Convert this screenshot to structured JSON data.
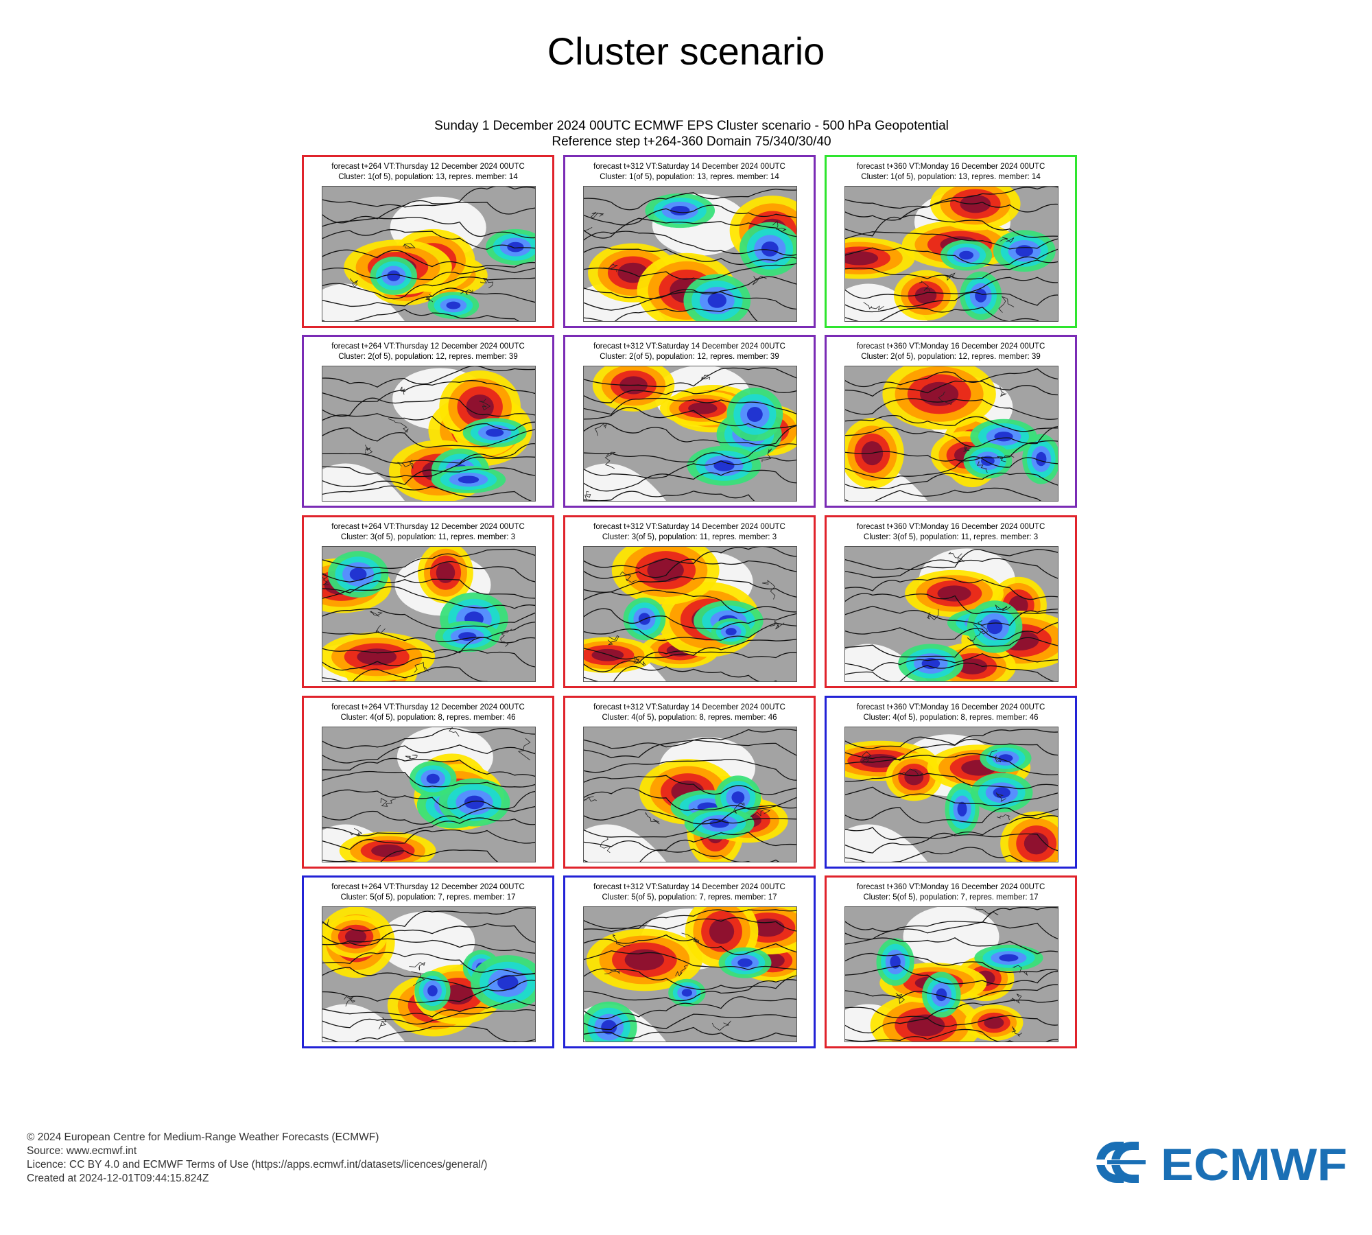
{
  "page": {
    "title": "Cluster scenario",
    "suptitle_line1": "Sunday 1 December 2024 00UTC ECMWF EPS Cluster scenario - 500 hPa Geopotential",
    "suptitle_line2": "Reference step t+264-360 Domain 75/340/30/40"
  },
  "colors": {
    "red": "#e0232b",
    "purple": "#7a2bb5",
    "green": "#2ee52e",
    "blue": "#2222d6"
  },
  "panels": [
    {
      "step": "forecast t+264 VT:Thursday 12 December 2024 00UTC",
      "cluster": "Cluster: 1(of 5), population: 13, repres. member: 14",
      "frame": "red"
    },
    {
      "step": "forecast t+312 VT:Saturday 14 December 2024 00UTC",
      "cluster": "Cluster: 1(of 5), population: 13, repres. member: 14",
      "frame": "purple"
    },
    {
      "step": "forecast t+360 VT:Monday 16 December 2024 00UTC",
      "cluster": "Cluster: 1(of 5), population: 13, repres. member: 14",
      "frame": "green"
    },
    {
      "step": "forecast t+264 VT:Thursday 12 December 2024 00UTC",
      "cluster": "Cluster: 2(of 5), population: 12, repres. member: 39",
      "frame": "purple"
    },
    {
      "step": "forecast t+312 VT:Saturday 14 December 2024 00UTC",
      "cluster": "Cluster: 2(of 5), population: 12, repres. member: 39",
      "frame": "purple"
    },
    {
      "step": "forecast t+360 VT:Monday 16 December 2024 00UTC",
      "cluster": "Cluster: 2(of 5), population: 12, repres. member: 39",
      "frame": "purple"
    },
    {
      "step": "forecast t+264 VT:Thursday 12 December 2024 00UTC",
      "cluster": "Cluster: 3(of 5), population: 11, repres. member: 3",
      "frame": "red"
    },
    {
      "step": "forecast t+312 VT:Saturday 14 December 2024 00UTC",
      "cluster": "Cluster: 3(of 5), population: 11, repres. member: 3",
      "frame": "red"
    },
    {
      "step": "forecast t+360 VT:Monday 16 December 2024 00UTC",
      "cluster": "Cluster: 3(of 5), population: 11, repres. member: 3",
      "frame": "red"
    },
    {
      "step": "forecast t+264 VT:Thursday 12 December 2024 00UTC",
      "cluster": "Cluster: 4(of 5), population: 8, repres. member: 46",
      "frame": "red"
    },
    {
      "step": "forecast t+312 VT:Saturday 14 December 2024 00UTC",
      "cluster": "Cluster: 4(of 5), population: 8, repres. member: 46",
      "frame": "red"
    },
    {
      "step": "forecast t+360 VT:Monday 16 December 2024 00UTC",
      "cluster": "Cluster: 4(of 5), population: 8, repres. member: 46",
      "frame": "blue"
    },
    {
      "step": "forecast t+264 VT:Thursday 12 December 2024 00UTC",
      "cluster": "Cluster: 5(of 5), population: 7, repres. member: 17",
      "frame": "blue"
    },
    {
      "step": "forecast t+312 VT:Saturday 14 December 2024 00UTC",
      "cluster": "Cluster: 5(of 5), population: 7, repres. member: 17",
      "frame": "blue"
    },
    {
      "step": "forecast t+360 VT:Monday 16 December 2024 00UTC",
      "cluster": "Cluster: 5(of 5), population: 7, repres. member: 17",
      "frame": "red"
    }
  ],
  "footer": {
    "copyright": "© 2024 European Centre for Medium-Range Weather Forecasts (ECMWF)",
    "source": "Source: www.ecmwf.int",
    "licence": "Licence: CC BY 4.0 and ECMWF Terms of Use (https://apps.ecmwf.int/datasets/licences/general/)",
    "created": "Created at 2024-12-01T09:44:15.824Z"
  },
  "logo": {
    "text": "ECMWF",
    "color": "#1a6fb5"
  }
}
